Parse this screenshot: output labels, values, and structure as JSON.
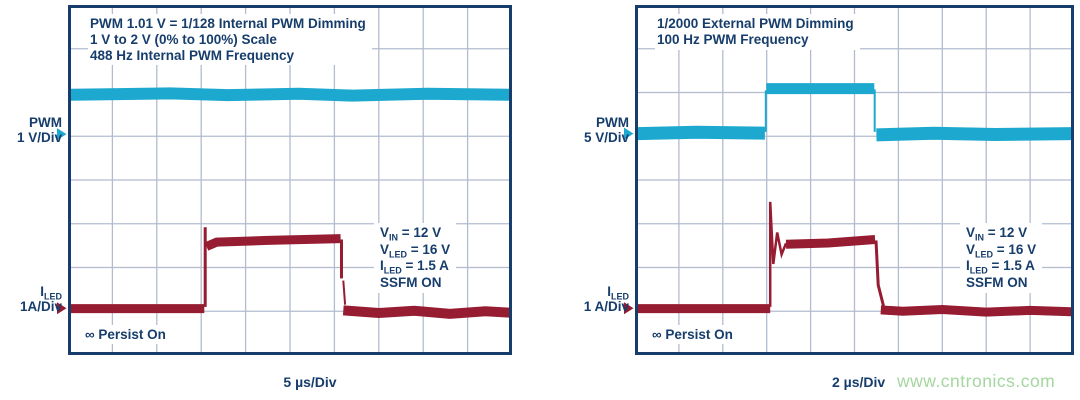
{
  "colors": {
    "navy": "#163d6b",
    "cyan": "#1da9cf",
    "red": "#951c31",
    "grid": "#b3bbcf",
    "watermark_green": "#a4d69f",
    "background": "#ffffff"
  },
  "watermark_text": "www.cntronics.com",
  "panels": [
    {
      "id": "left-scope",
      "title_lines": [
        "PWM 1.01 V = 1/128 Internal PWM Dimming",
        "1 V to 2 V (0% to 100%) Scale",
        "488 Hz Internal PWM Frequency"
      ],
      "pwm_label": {
        "line1": {
          "pre": "PWM",
          "sub": "",
          "post": ""
        },
        "line2": {
          "pre": "1 V/Div",
          "sub": "",
          "post": ""
        }
      },
      "iled_label": {
        "line1": {
          "pre": "I",
          "sub": "LED",
          "post": ""
        },
        "line2": {
          "pre": "1A/Div",
          "sub": "",
          "post": ""
        }
      },
      "annotation_lines": [
        {
          "pre": "V",
          "sub": "IN",
          "post": " = 12 V"
        },
        {
          "pre": "V",
          "sub": "LED",
          "post": " = 16 V"
        },
        {
          "pre": "I",
          "sub": "LED",
          "post": " = 1.5 A"
        },
        {
          "pre": "SSFM ON",
          "sub": "",
          "post": ""
        }
      ],
      "persist_label": "∞ Persist On",
      "time_per_div": "5 µs/Div"
    },
    {
      "id": "right-scope",
      "title_lines": [
        "1/2000 External PWM Dimming",
        "100 Hz PWM Frequency"
      ],
      "pwm_label": {
        "line1": {
          "pre": "PWM",
          "sub": "",
          "post": ""
        },
        "line2": {
          "pre": "5 V/Div",
          "sub": "",
          "post": ""
        }
      },
      "iled_label": {
        "line1": {
          "pre": "I",
          "sub": "LED",
          "post": ""
        },
        "line2": {
          "pre": "1 A/Div",
          "sub": "",
          "post": ""
        }
      },
      "annotation_lines": [
        {
          "pre": "V",
          "sub": "IN",
          "post": " = 12 V"
        },
        {
          "pre": "V",
          "sub": "LED",
          "post": " = 16 V"
        },
        {
          "pre": "I",
          "sub": "LED",
          "post": " = 1.5 A"
        },
        {
          "pre": "SSFM ON",
          "sub": "",
          "post": ""
        }
      ],
      "persist_label": "∞ Persist On",
      "time_per_div": "2 µs/Div"
    }
  ],
  "chart_data": [
    {
      "panel": "left-scope",
      "type": "line",
      "title": "PWM 1.01 V = 1/128 Internal PWM Dimming, 1 V to 2 V (0% to 100%) Scale, 488 Hz Internal PWM Frequency",
      "x_axis": {
        "divisions": 10,
        "per_div": "5 µs",
        "label": "5 µs/Div"
      },
      "y_axis": {
        "divisions": 8
      },
      "grid": true,
      "conditions": [
        "VIN = 12 V",
        "VLED = 16 V",
        "ILED = 1.5 A",
        "SSFM ON"
      ],
      "series": [
        {
          "name": "PWM",
          "scale": "1 V/Div",
          "color": "cyan",
          "marker_y_div": 2.95,
          "description": "PWM analog dim input held near 1.01 V (1/128 dimming), flat noisy band ~0.9 div above reference",
          "segments": [
            {
              "w": 12,
              "pts": [
                [
                  0.06,
                  2.05
                ],
                [
                  2.3,
                  2.02
                ],
                [
                  3.6,
                  2.06
                ],
                [
                  5.2,
                  2.03
                ],
                [
                  6.4,
                  2.07
                ],
                [
                  8.1,
                  2.03
                ],
                [
                  9.94,
                  2.05
                ]
              ]
            }
          ]
        },
        {
          "name": "ILED",
          "scale": "1A/Div",
          "color": "red",
          "marker_y_div": 6.93,
          "description": "LED current: 0 A baseline with one 1.5 A pulse from ~3.1 to ~6.2 divisions",
          "segments": [
            {
              "w": 9,
              "pts": [
                [
                  0.06,
                  6.94
                ],
                [
                  3.07,
                  6.94
                ]
              ]
            },
            {
              "w": 3,
              "pts": [
                [
                  3.09,
                  6.9
                ],
                [
                  3.09,
                  5.08
                ]
              ]
            },
            {
              "w": 9,
              "pts": [
                [
                  3.12,
                  5.52
                ],
                [
                  3.35,
                  5.42
                ],
                [
                  4.5,
                  5.38
                ],
                [
                  6.14,
                  5.34
                ]
              ]
            },
            {
              "w": 3,
              "pts": [
                [
                  6.16,
                  5.36
                ],
                [
                  6.16,
                  6.25
                ]
              ]
            },
            {
              "w": 2,
              "pts": [
                [
                  6.2,
                  6.3
                ],
                [
                  6.24,
                  6.85
                ]
              ]
            },
            {
              "w": 10,
              "pts": [
                [
                  6.2,
                  6.98
                ],
                [
                  7.0,
                  7.04
                ],
                [
                  7.8,
                  6.99
                ],
                [
                  8.6,
                  7.06
                ],
                [
                  9.4,
                  7.0
                ],
                [
                  9.94,
                  7.03
                ]
              ]
            }
          ]
        }
      ]
    },
    {
      "panel": "right-scope",
      "type": "line",
      "title": "1/2000 External PWM Dimming, 100 Hz PWM Frequency",
      "x_axis": {
        "divisions": 10,
        "per_div": "2 µs",
        "label": "2 µs/Div"
      },
      "y_axis": {
        "divisions": 8
      },
      "grid": true,
      "conditions": [
        "VIN = 12 V",
        "VLED = 16 V",
        "ILED = 1.5 A",
        "SSFM ON"
      ],
      "series": [
        {
          "name": "PWM",
          "scale": "5 V/Div",
          "color": "cyan",
          "marker_y_div": 2.94,
          "description": "External PWM input: 0 V baseline with ~5 V high pulse from ~3.0 to ~5.45 divisions",
          "segments": [
            {
              "w": 13,
              "pts": [
                [
                  0.06,
                  2.94
                ],
                [
                  1.4,
                  2.91
                ],
                [
                  2.96,
                  2.93
                ]
              ]
            },
            {
              "w": 2,
              "pts": [
                [
                  2.98,
                  2.9
                ],
                [
                  2.98,
                  1.95
                ]
              ]
            },
            {
              "w": 11,
              "pts": [
                [
                  2.99,
                  1.91
                ],
                [
                  5.45,
                  1.91
                ]
              ]
            },
            {
              "w": 2,
              "pts": [
                [
                  5.46,
                  1.93
                ],
                [
                  5.46,
                  2.9
                ]
              ]
            },
            {
              "w": 13,
              "pts": [
                [
                  5.5,
                  2.97
                ],
                [
                  6.8,
                  2.93
                ],
                [
                  8.2,
                  2.96
                ],
                [
                  9.94,
                  2.94
                ]
              ]
            }
          ]
        },
        {
          "name": "ILED",
          "scale": "1 A/Div",
          "color": "red",
          "marker_y_div": 6.93,
          "description": "LED current: 0 A baseline, 1.5 A pulse with leading-edge overshoot and ringing, from ~3.1 to ~5.5 divisions",
          "segments": [
            {
              "w": 9,
              "pts": [
                [
                  0.06,
                  6.94
                ],
                [
                  3.08,
                  6.94
                ]
              ]
            },
            {
              "w": 2.5,
              "pts": [
                [
                  3.08,
                  6.9
                ],
                [
                  3.08,
                  4.5
                ]
              ]
            },
            {
              "w": 2.5,
              "pts": [
                [
                  3.08,
                  4.5
                ],
                [
                  3.15,
                  5.92
                ],
                [
                  3.24,
                  5.2
                ],
                [
                  3.34,
                  5.7
                ],
                [
                  3.44,
                  5.45
                ]
              ]
            },
            {
              "w": 9,
              "pts": [
                [
                  3.44,
                  5.47
                ],
                [
                  4.4,
                  5.44
                ],
                [
                  5.47,
                  5.36
                ]
              ]
            },
            {
              "w": 3,
              "pts": [
                [
                  5.49,
                  5.38
                ],
                [
                  5.54,
                  6.4
                ],
                [
                  5.66,
                  6.88
                ]
              ]
            },
            {
              "w": 9,
              "pts": [
                [
                  5.6,
                  6.97
                ],
                [
                  6.1,
                  7.0
                ],
                [
                  7.0,
                  6.96
                ],
                [
                  8.0,
                  7.02
                ],
                [
                  9.0,
                  6.98
                ],
                [
                  9.94,
                  7.01
                ]
              ]
            }
          ]
        }
      ]
    }
  ]
}
